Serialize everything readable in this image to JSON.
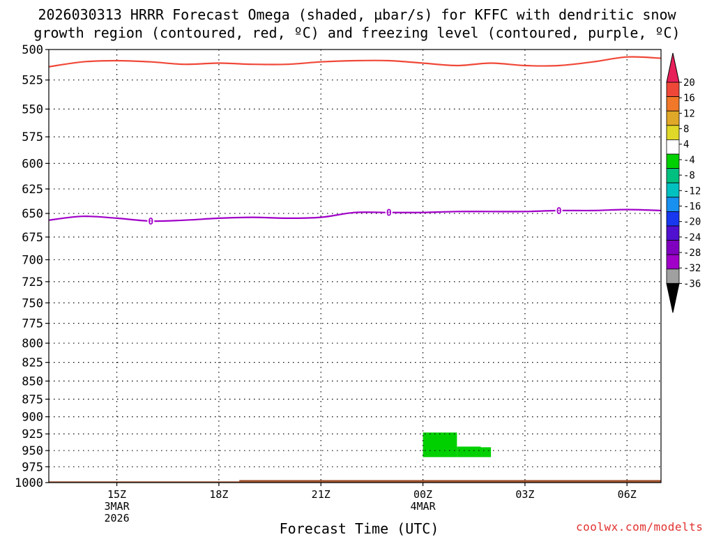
{
  "title": {
    "line1": "2026030313 HRRR Forecast Omega (shaded, µbar/s) for KFFC with dendritic snow",
    "line2": "growth region (contoured, red, ºC) and freezing level (contoured, purple, ºC)"
  },
  "footer": {
    "xlabel": "Forecast Time (UTC)",
    "credit": "coolwx.com/modelts"
  },
  "colors": {
    "dgz_line": "#f04838",
    "freezing_line": "#a000c8",
    "omega_fill": "#00d000",
    "ground": "#a0522d",
    "grid": "#000000"
  },
  "chart_data": {
    "type": "heatmap",
    "xlabel": "Forecast Time (UTC)",
    "ylabel": "",
    "x_unit": "hours after 2026-03-03 13Z",
    "xlim": [
      0,
      18
    ],
    "ylim": [
      1000,
      500
    ],
    "yscale": "log",
    "grid": true,
    "yticks": [
      500,
      525,
      550,
      575,
      600,
      625,
      650,
      675,
      700,
      725,
      750,
      775,
      800,
      825,
      850,
      875,
      900,
      925,
      950,
      975,
      1000
    ],
    "xticks": [
      {
        "x": 2,
        "lines": [
          "15Z",
          "3MAR",
          "2026"
        ]
      },
      {
        "x": 5,
        "lines": [
          "18Z"
        ]
      },
      {
        "x": 8,
        "lines": [
          "21Z"
        ]
      },
      {
        "x": 11,
        "lines": [
          "00Z",
          "4MAR"
        ]
      },
      {
        "x": 14,
        "lines": [
          "03Z"
        ]
      },
      {
        "x": 17,
        "lines": [
          "06Z"
        ]
      }
    ],
    "dgz_contour": {
      "color": "#f04838",
      "points": [
        [
          0,
          514
        ],
        [
          1,
          510
        ],
        [
          2,
          509
        ],
        [
          3,
          510
        ],
        [
          4,
          512
        ],
        [
          5,
          511
        ],
        [
          6,
          512
        ],
        [
          7,
          512
        ],
        [
          8,
          510
        ],
        [
          9,
          509
        ],
        [
          10,
          509
        ],
        [
          11,
          511
        ],
        [
          12,
          513
        ],
        [
          13,
          511
        ],
        [
          14,
          513
        ],
        [
          15,
          513
        ],
        [
          16,
          510
        ],
        [
          17,
          506
        ],
        [
          18,
          507
        ]
      ]
    },
    "freezing_contour": {
      "color": "#a000c8",
      "label": "0",
      "label_x": [
        3,
        10,
        15
      ],
      "points": [
        [
          0,
          657
        ],
        [
          1,
          653
        ],
        [
          2,
          655
        ],
        [
          3,
          658
        ],
        [
          4,
          657
        ],
        [
          5,
          655
        ],
        [
          6,
          654
        ],
        [
          7,
          655
        ],
        [
          8,
          654
        ],
        [
          9,
          649
        ],
        [
          10,
          649
        ],
        [
          11,
          649
        ],
        [
          12,
          648
        ],
        [
          13,
          648
        ],
        [
          14,
          648
        ],
        [
          15,
          647
        ],
        [
          16,
          647
        ],
        [
          17,
          646
        ],
        [
          18,
          647
        ]
      ]
    },
    "omega_shading": [
      {
        "x0": 11.0,
        "x1": 12.0,
        "p_top": 923,
        "p_bottom": 960,
        "value": -6
      },
      {
        "x0": 12.0,
        "x1": 12.7,
        "p_top": 944,
        "p_bottom": 960,
        "value": -6
      },
      {
        "x0": 12.7,
        "x1": 13.0,
        "p_top": 945,
        "p_bottom": 960,
        "value": -6
      }
    ],
    "ground": {
      "x_start": 0,
      "x_step": 5.6,
      "pressure_lo": 998,
      "pressure_hi": 996
    },
    "colorbar": {
      "labels": [
        "20",
        "16",
        "12",
        "8",
        "4",
        "-4",
        "-8",
        "-12",
        "-16",
        "-20",
        "-24",
        "-28",
        "-32",
        "-36"
      ],
      "colors": [
        "#e8205a",
        "#f04838",
        "#f07828",
        "#e0a828",
        "#e0d828",
        "#ffffff",
        "#00d000",
        "#00c080",
        "#00c0c0",
        "#1890f0",
        "#1838f0",
        "#5010d0",
        "#8000c0",
        "#a000c8",
        "#a0a0a0",
        "#000000"
      ]
    }
  }
}
